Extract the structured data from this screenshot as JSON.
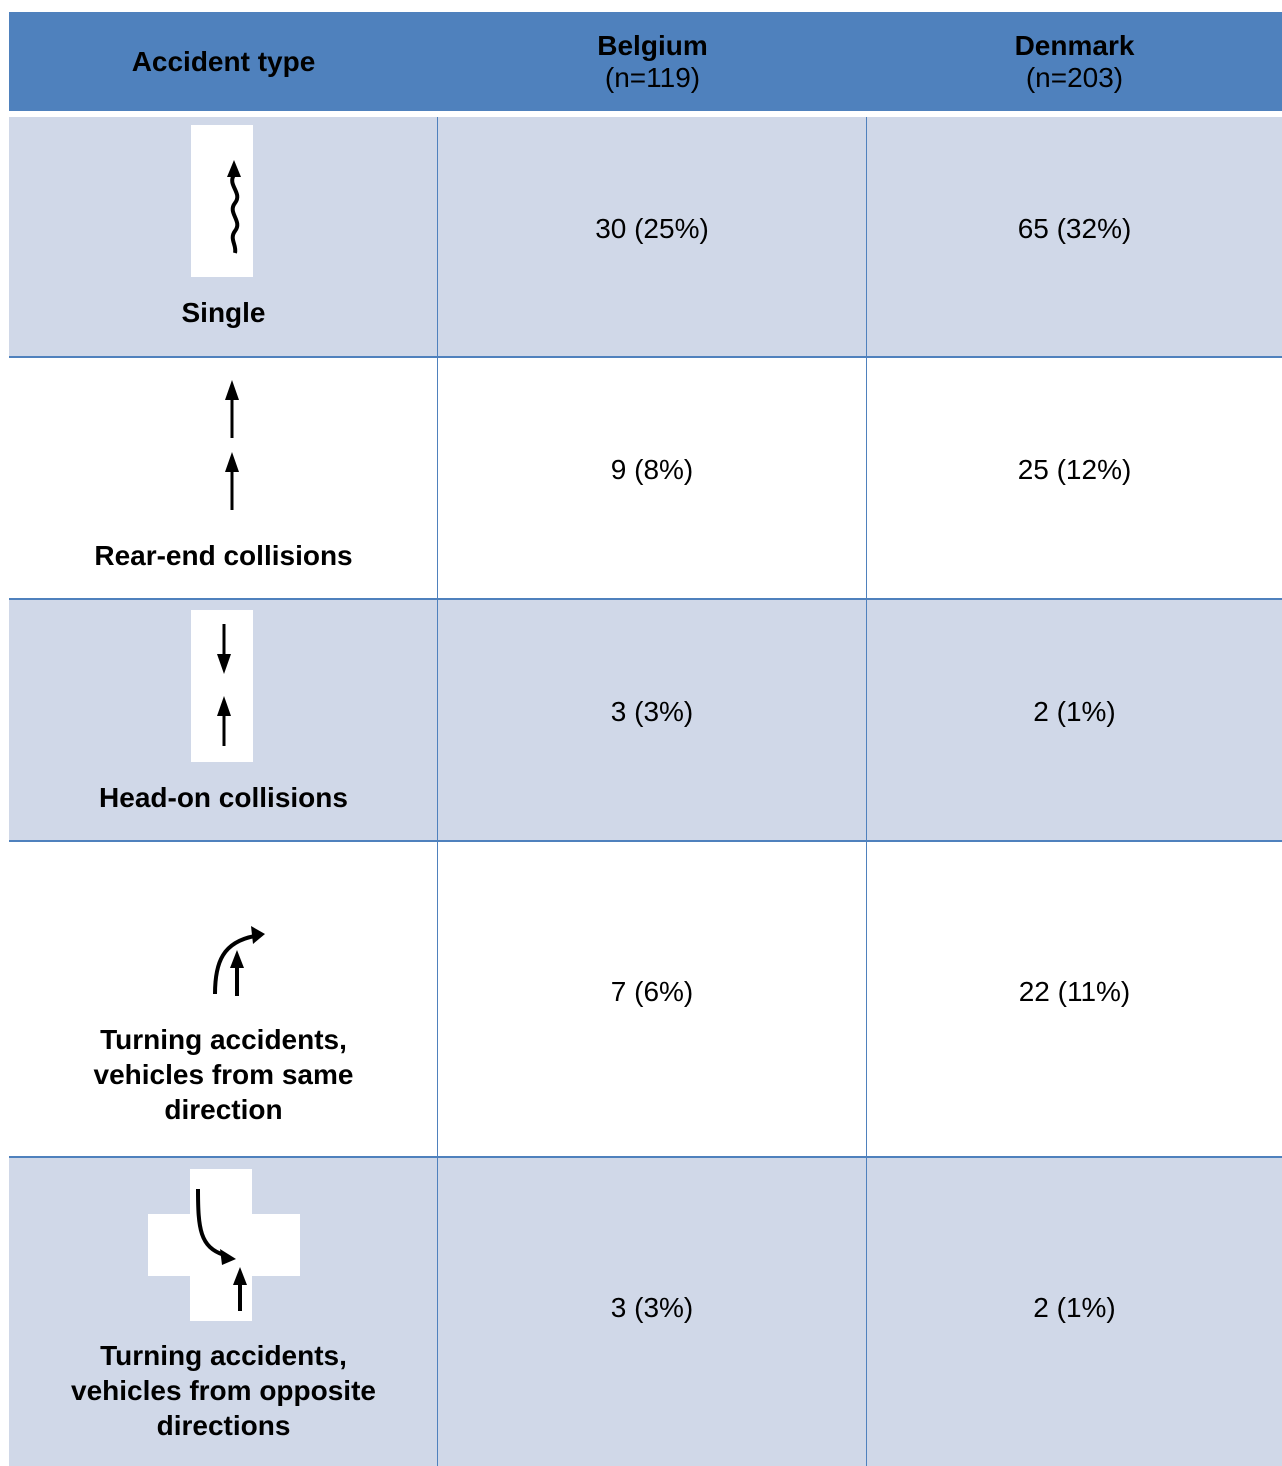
{
  "header": {
    "col1": "Accident type",
    "col2_title": "Belgium",
    "col2_sub": "(n=119)",
    "col3_title": "Denmark",
    "col3_sub": "(n=203)"
  },
  "rows": [
    {
      "label": "Single",
      "icon": "wavy-arrow-up-icon",
      "belgium": "30 (25%)",
      "denmark": "65 (32%)"
    },
    {
      "label": "Rear-end collisions",
      "icon": "two-arrows-up-icon",
      "belgium": "9 (8%)",
      "denmark": "25 (12%)"
    },
    {
      "label": "Head-on collisions",
      "icon": "arrows-opposing-icon",
      "belgium": "3 (3%)",
      "denmark": "2 (1%)"
    },
    {
      "label_lines": [
        "Turning accidents,",
        "vehicles from same",
        "direction"
      ],
      "icon": "turn-same-direction-icon",
      "belgium": "7 (6%)",
      "denmark": "22 (11%)"
    },
    {
      "label_lines": [
        "Turning accidents,",
        "vehicles from opposite",
        "directions"
      ],
      "icon": "turn-opposite-direction-icon",
      "belgium": "3 (3%)",
      "denmark": "2 (1%)"
    }
  ],
  "colors": {
    "header": "#4f81bd",
    "shaded_row": "#d0d8e8",
    "plain_row": "#ffffff"
  }
}
